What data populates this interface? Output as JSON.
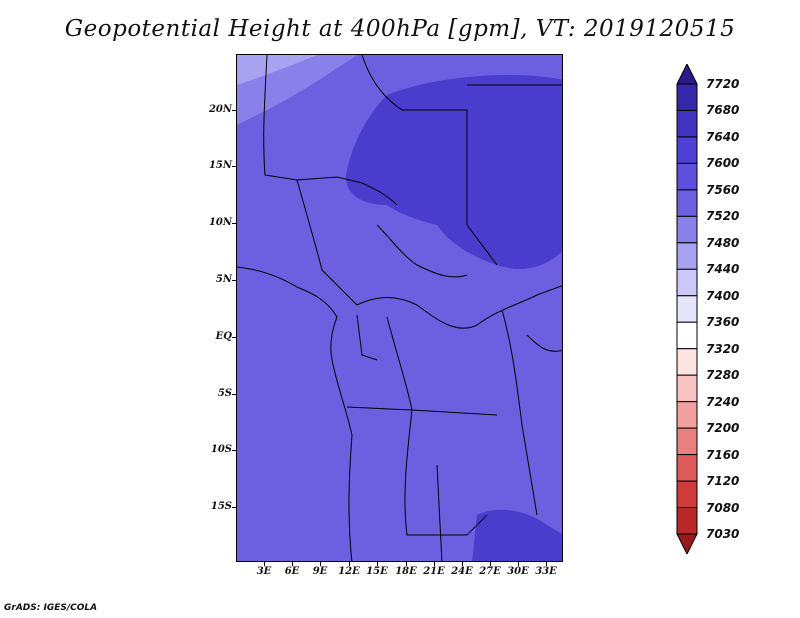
{
  "title": "Geopotential Height at 400hPa [gpm], VT: 2019120515",
  "credit": "GrADS: IGES/COLA",
  "map": {
    "lat_labels": [
      "20N",
      "15N",
      "10N",
      "5N",
      "EQ",
      "5S",
      "10S",
      "15S"
    ],
    "lon_labels": [
      "3E",
      "6E",
      "9E",
      "12E",
      "15E",
      "18E",
      "21E",
      "24E",
      "27E",
      "30E",
      "33E"
    ]
  },
  "colorbar": {
    "levels": [
      "7720",
      "7680",
      "7640",
      "7600",
      "7560",
      "7520",
      "7480",
      "7440",
      "7400",
      "7360",
      "7320",
      "7280",
      "7240",
      "7200",
      "7160",
      "7120",
      "7080",
      "7030"
    ],
    "colors": [
      "#2a1a8c",
      "#3528a8",
      "#4133c0",
      "#4e40d2",
      "#5e50dc",
      "#6d5fe0",
      "#8a80ea",
      "#a8a2f1",
      "#cbc8f7",
      "#e6e5fb",
      "#ffffff",
      "#fde2e2",
      "#f9c3c3",
      "#f2a0a0",
      "#e97f7f",
      "#de5a5a",
      "#cf3a3a",
      "#b82828",
      "#991a1a"
    ]
  }
}
